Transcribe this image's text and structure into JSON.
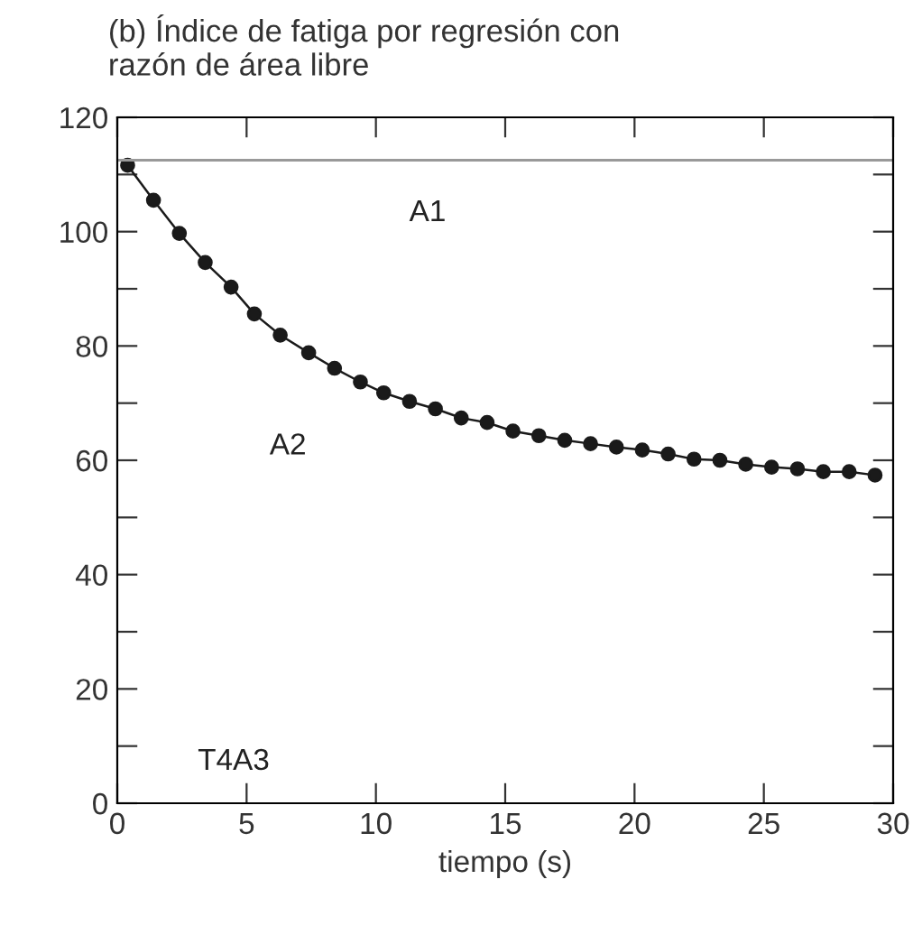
{
  "chart_data": {
    "type": "line",
    "title": "(b) Índice de fatiga por regresión con\nrazón de área libre",
    "xlabel": "tiempo (s)",
    "x": [
      0.4,
      1.4,
      2.4,
      3.4,
      4.4,
      5.3,
      6.3,
      7.4,
      8.4,
      9.4,
      10.3,
      11.3,
      12.3,
      13.3,
      14.3,
      15.3,
      16.3,
      17.3,
      18.3,
      19.3,
      20.3,
      21.3,
      22.3,
      23.3,
      24.3,
      25.3,
      26.3,
      27.3,
      28.3,
      29.3
    ],
    "series": [
      {
        "color": "#1a1a1a",
        "values": [
          111.6,
          105.5,
          99.7,
          94.6,
          90.3,
          85.6,
          81.9,
          78.8,
          76.1,
          73.7,
          71.8,
          70.3,
          69.0,
          67.4,
          66.6,
          65.1,
          64.3,
          63.5,
          62.9,
          62.3,
          61.8,
          61.1,
          60.2,
          60.0,
          59.3,
          58.8,
          58.5,
          58.0,
          58.0,
          57.4
        ]
      }
    ],
    "marker": "circle",
    "line_style": "solid",
    "xlim": [
      0,
      30
    ],
    "xticks": [
      0,
      5,
      10,
      15,
      20,
      25,
      30
    ],
    "ylim": [
      0,
      120
    ],
    "yticks": [
      0,
      {
        "value": 10,
        "label": null
      },
      20,
      {
        "value": 30,
        "label": null
      },
      40,
      {
        "value": 50,
        "label": null
      },
      60,
      {
        "value": 70,
        "label": null
      },
      80,
      {
        "value": 90,
        "label": null
      },
      100,
      {
        "value": 110,
        "label": null
      },
      120
    ],
    "ref_lines": [
      {
        "axis": "y",
        "value": 112.5,
        "color": "#999999"
      }
    ],
    "annotations": [
      "A1",
      "A2",
      "T4A3"
    ],
    "grid": false,
    "legend": false
  }
}
